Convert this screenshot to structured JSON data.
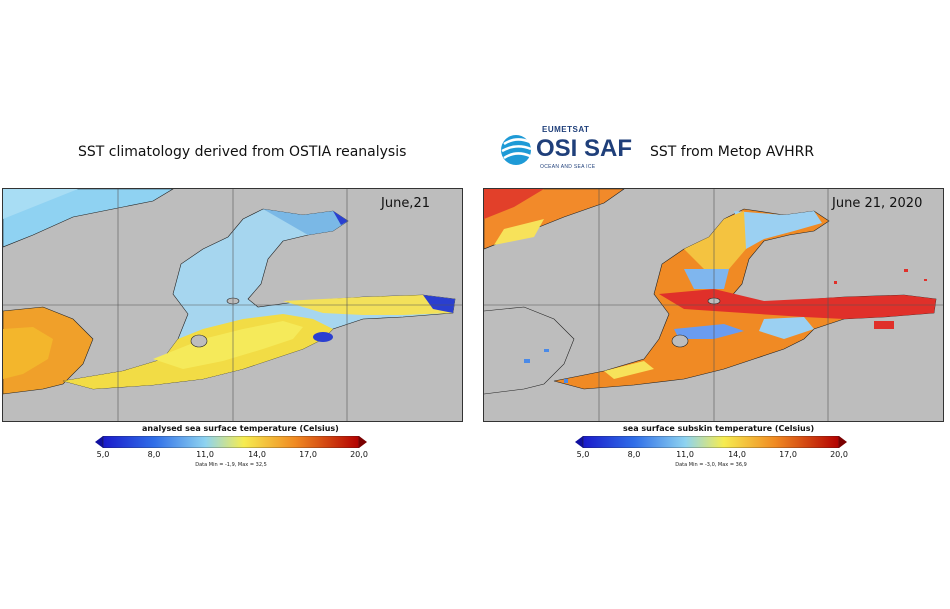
{
  "left_panel": {
    "heading": "SST climatology derived from OSTIA reanalysis",
    "date": "June,21",
    "colorbar": {
      "title": "analysed sea surface temperature (Celsius)",
      "ticks": [
        "5,0",
        "8,0",
        "11,0",
        "14,0",
        "17,0",
        "20,0"
      ],
      "note": "Data Min = -1,9, Max = 32,5"
    }
  },
  "right_panel": {
    "heading": "SST from Metop AVHRR",
    "date": "June 21, 2020",
    "colorbar": {
      "title": "sea surface subskin temperature (Celsius)",
      "ticks": [
        "5,0",
        "8,0",
        "11,0",
        "14,0",
        "17,0",
        "20,0"
      ],
      "note": "Data Min = -3,0, Max = 36,9"
    }
  },
  "logo": {
    "top": "EUMETSAT",
    "main": "OSI SAF",
    "sub": "OCEAN AND SEA ICE",
    "icon": "osisaf-globe-icon"
  },
  "colors": {
    "land": "#bdbdbd",
    "scale_low": "#1e2bd6",
    "scale_mid": "#f2e63a",
    "scale_high": "#c00000"
  }
}
